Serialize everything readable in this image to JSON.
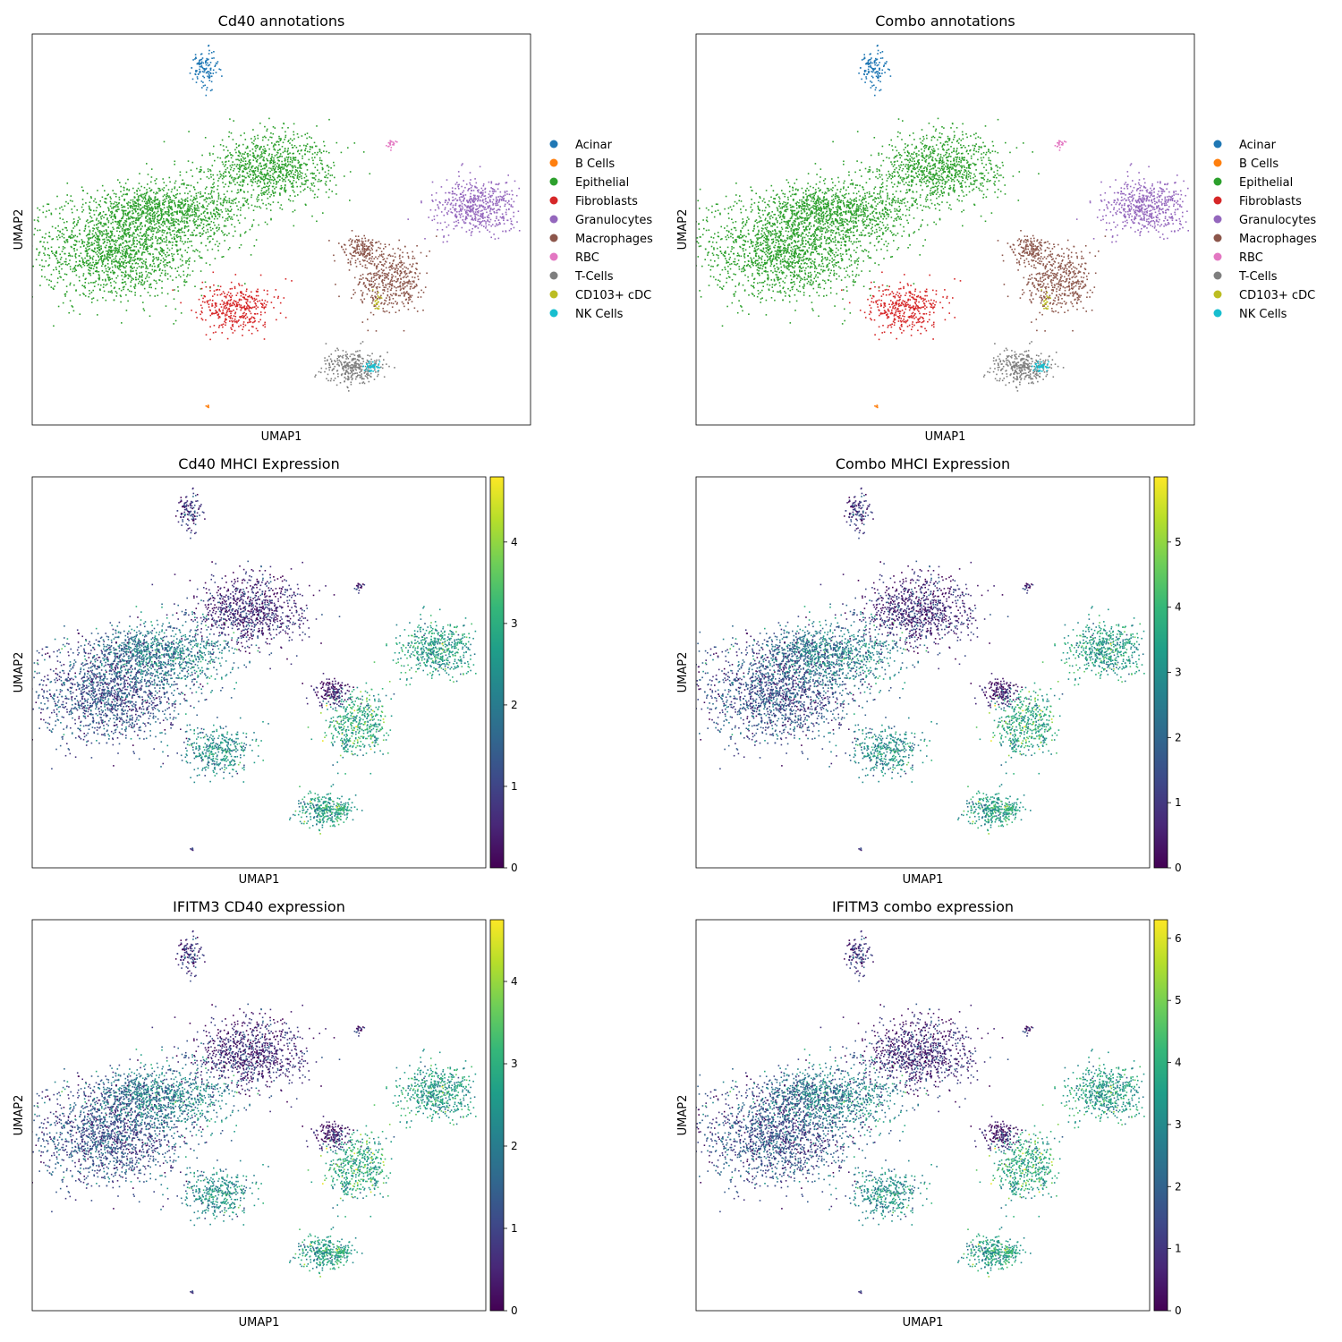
{
  "legend": {
    "categories": [
      {
        "name": "Acinar",
        "color": "#1f77b4"
      },
      {
        "name": "B Cells",
        "color": "#ff7f0e"
      },
      {
        "name": "Epithelial",
        "color": "#2ca02c"
      },
      {
        "name": "Fibroblasts",
        "color": "#d62728"
      },
      {
        "name": "Granulocytes",
        "color": "#9467bd"
      },
      {
        "name": "Macrophages",
        "color": "#8c564b"
      },
      {
        "name": "RBC",
        "color": "#e377c2"
      },
      {
        "name": "T-Cells",
        "color": "#7f7f7f"
      },
      {
        "name": "CD103+ cDC",
        "color": "#bcbd22"
      },
      {
        "name": "NK Cells",
        "color": "#17becf"
      }
    ]
  },
  "chart_data": [
    {
      "type": "scatter",
      "id": "cd40-annotations",
      "title": "Cd40 annotations",
      "xlabel": "UMAP1",
      "ylabel": "UMAP2",
      "color_mode": "categorical",
      "show_legend": true,
      "grid": false
    },
    {
      "type": "scatter",
      "id": "combo-annotations",
      "title": "Combo annotations",
      "xlabel": "UMAP1",
      "ylabel": "UMAP2",
      "color_mode": "categorical",
      "show_legend": true,
      "grid": false
    },
    {
      "type": "scatter",
      "id": "cd40-mhci",
      "title": "Cd40 MHCI Expression",
      "xlabel": "UMAP1",
      "ylabel": "UMAP2",
      "color_mode": "continuous",
      "colormap": "viridis",
      "colorbar": {
        "min": 0,
        "max": 4.8,
        "ticks": [
          0,
          1,
          2,
          3,
          4
        ]
      },
      "grid": false
    },
    {
      "type": "scatter",
      "id": "combo-mhci",
      "title": "Combo MHCI Expression",
      "xlabel": "UMAP1",
      "ylabel": "UMAP2",
      "color_mode": "continuous",
      "colormap": "viridis",
      "colorbar": {
        "min": 0,
        "max": 6.0,
        "ticks": [
          0,
          1,
          2,
          3,
          4,
          5
        ]
      },
      "grid": false
    },
    {
      "type": "scatter",
      "id": "ifitm3-cd40",
      "title": "IFITM3 CD40 expression",
      "xlabel": "UMAP1",
      "ylabel": "UMAP2",
      "color_mode": "continuous",
      "colormap": "viridis",
      "colorbar": {
        "min": 0,
        "max": 4.75,
        "ticks": [
          0,
          1,
          2,
          3,
          4
        ]
      },
      "grid": false
    },
    {
      "type": "scatter",
      "id": "ifitm3-combo",
      "title": "IFITM3 combo expression",
      "xlabel": "UMAP1",
      "ylabel": "UMAP2",
      "color_mode": "continuous",
      "colormap": "viridis",
      "colorbar": {
        "min": 0,
        "max": 6.3,
        "ticks": [
          0,
          1,
          2,
          3,
          4,
          5,
          6
        ]
      },
      "grid": false
    }
  ]
}
